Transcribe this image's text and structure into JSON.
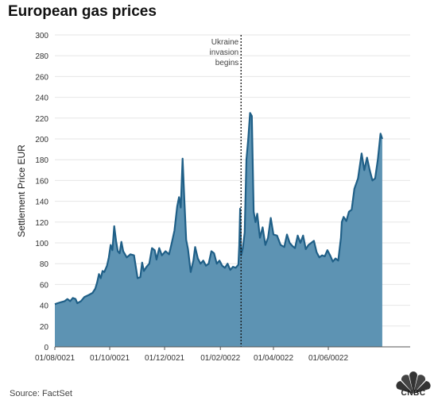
{
  "page_title": "European gas prices",
  "source": "Source: FactSet",
  "logo_text": "CNBC",
  "colors": {
    "fill": "#5d93b3",
    "line": "#1f5f87",
    "grid": "#e6e6e6",
    "annotation_line": "#111111"
  },
  "chart_data": {
    "type": "area",
    "title": "European gas prices",
    "xlabel": "",
    "ylabel": "Settlement Price EUR",
    "ylim": [
      0,
      300
    ],
    "yticks": [
      0,
      20,
      40,
      60,
      80,
      100,
      120,
      140,
      160,
      180,
      200,
      220,
      240,
      260,
      280,
      300
    ],
    "xlim": [
      "2021-08-01",
      "2022-08-31"
    ],
    "xticks": [
      {
        "date": "2021-08-01",
        "label": "01/08/0021"
      },
      {
        "date": "2021-10-01",
        "label": "01/10/0021"
      },
      {
        "date": "2021-12-01",
        "label": "01/12/0021"
      },
      {
        "date": "2022-02-01",
        "label": "01/02/0022"
      },
      {
        "date": "2022-04-01",
        "label": "01/04/0022"
      },
      {
        "date": "2022-06-01",
        "label": "01/06/0022"
      }
    ],
    "grid": true,
    "annotation": {
      "date": "2022-02-24",
      "text": [
        "Ukraine",
        "invasion",
        "begins"
      ]
    },
    "series": [
      {
        "points": [
          [
            "2021-08-01",
            41
          ],
          [
            "2021-08-04",
            42
          ],
          [
            "2021-08-08",
            43
          ],
          [
            "2021-08-12",
            44
          ],
          [
            "2021-08-15",
            46
          ],
          [
            "2021-08-18",
            44
          ],
          [
            "2021-08-21",
            47
          ],
          [
            "2021-08-24",
            46
          ],
          [
            "2021-08-26",
            42
          ],
          [
            "2021-08-30",
            44
          ],
          [
            "2021-09-03",
            48
          ],
          [
            "2021-09-08",
            50
          ],
          [
            "2021-09-12",
            52
          ],
          [
            "2021-09-15",
            56
          ],
          [
            "2021-09-17",
            62
          ],
          [
            "2021-09-19",
            70
          ],
          [
            "2021-09-21",
            66
          ],
          [
            "2021-09-23",
            73
          ],
          [
            "2021-09-25",
            72
          ],
          [
            "2021-09-28",
            78
          ],
          [
            "2021-09-30",
            86
          ],
          [
            "2021-10-02",
            98
          ],
          [
            "2021-10-04",
            93
          ],
          [
            "2021-10-06",
            116
          ],
          [
            "2021-10-08",
            102
          ],
          [
            "2021-10-10",
            92
          ],
          [
            "2021-10-12",
            90
          ],
          [
            "2021-10-14",
            101
          ],
          [
            "2021-10-16",
            92
          ],
          [
            "2021-10-20",
            86
          ],
          [
            "2021-10-24",
            89
          ],
          [
            "2021-10-28",
            88
          ],
          [
            "2021-11-01",
            66
          ],
          [
            "2021-11-04",
            67
          ],
          [
            "2021-11-06",
            81
          ],
          [
            "2021-11-08",
            73
          ],
          [
            "2021-11-11",
            77
          ],
          [
            "2021-11-14",
            80
          ],
          [
            "2021-11-17",
            95
          ],
          [
            "2021-11-20",
            93
          ],
          [
            "2021-11-22",
            84
          ],
          [
            "2021-11-25",
            95
          ],
          [
            "2021-11-28",
            88
          ],
          [
            "2021-12-02",
            92
          ],
          [
            "2021-12-06",
            89
          ],
          [
            "2021-12-09",
            100
          ],
          [
            "2021-12-12",
            112
          ],
          [
            "2021-12-15",
            135
          ],
          [
            "2021-12-17",
            144
          ],
          [
            "2021-12-19",
            134
          ],
          [
            "2021-12-21",
            181
          ],
          [
            "2021-12-23",
            140
          ],
          [
            "2021-12-25",
            103
          ],
          [
            "2021-12-27",
            94
          ],
          [
            "2021-12-30",
            72
          ],
          [
            "2022-01-02",
            83
          ],
          [
            "2022-01-04",
            96
          ],
          [
            "2022-01-07",
            85
          ],
          [
            "2022-01-10",
            80
          ],
          [
            "2022-01-13",
            83
          ],
          [
            "2022-01-16",
            78
          ],
          [
            "2022-01-19",
            80
          ],
          [
            "2022-01-22",
            92
          ],
          [
            "2022-01-25",
            90
          ],
          [
            "2022-01-28",
            80
          ],
          [
            "2022-01-31",
            83
          ],
          [
            "2022-02-03",
            78
          ],
          [
            "2022-02-06",
            76
          ],
          [
            "2022-02-09",
            80
          ],
          [
            "2022-02-12",
            74
          ],
          [
            "2022-02-15",
            77
          ],
          [
            "2022-02-18",
            76
          ],
          [
            "2022-02-21",
            79
          ],
          [
            "2022-02-22",
            98
          ],
          [
            "2022-02-23",
            133
          ],
          [
            "2022-02-24",
            88
          ],
          [
            "2022-02-26",
            95
          ],
          [
            "2022-02-28",
            110
          ],
          [
            "2022-03-02",
            180
          ],
          [
            "2022-03-04",
            200
          ],
          [
            "2022-03-06",
            225
          ],
          [
            "2022-03-08",
            222
          ],
          [
            "2022-03-10",
            130
          ],
          [
            "2022-03-12",
            120
          ],
          [
            "2022-03-14",
            128
          ],
          [
            "2022-03-17",
            105
          ],
          [
            "2022-03-20",
            115
          ],
          [
            "2022-03-23",
            98
          ],
          [
            "2022-03-26",
            105
          ],
          [
            "2022-03-29",
            124
          ],
          [
            "2022-04-01",
            108
          ],
          [
            "2022-04-05",
            107
          ],
          [
            "2022-04-09",
            98
          ],
          [
            "2022-04-13",
            96
          ],
          [
            "2022-04-16",
            108
          ],
          [
            "2022-04-19",
            100
          ],
          [
            "2022-04-22",
            97
          ],
          [
            "2022-04-25",
            95
          ],
          [
            "2022-04-28",
            107
          ],
          [
            "2022-05-01",
            100
          ],
          [
            "2022-05-04",
            107
          ],
          [
            "2022-05-07",
            94
          ],
          [
            "2022-05-10",
            98
          ],
          [
            "2022-05-13",
            100
          ],
          [
            "2022-05-16",
            102
          ],
          [
            "2022-05-19",
            91
          ],
          [
            "2022-05-22",
            86
          ],
          [
            "2022-05-25",
            88
          ],
          [
            "2022-05-28",
            87
          ],
          [
            "2022-05-31",
            93
          ],
          [
            "2022-06-03",
            88
          ],
          [
            "2022-06-06",
            82
          ],
          [
            "2022-06-09",
            85
          ],
          [
            "2022-06-12",
            83
          ],
          [
            "2022-06-15",
            105
          ],
          [
            "2022-06-16",
            120
          ],
          [
            "2022-06-18",
            125
          ],
          [
            "2022-06-21",
            121
          ],
          [
            "2022-06-24",
            130
          ],
          [
            "2022-06-27",
            132
          ],
          [
            "2022-06-30",
            152
          ],
          [
            "2022-07-04",
            162
          ],
          [
            "2022-07-08",
            186
          ],
          [
            "2022-07-11",
            170
          ],
          [
            "2022-07-14",
            182
          ],
          [
            "2022-07-17",
            170
          ],
          [
            "2022-07-20",
            160
          ],
          [
            "2022-07-23",
            162
          ],
          [
            "2022-07-26",
            180
          ],
          [
            "2022-07-29",
            205
          ],
          [
            "2022-07-31",
            200
          ]
        ]
      }
    ]
  }
}
